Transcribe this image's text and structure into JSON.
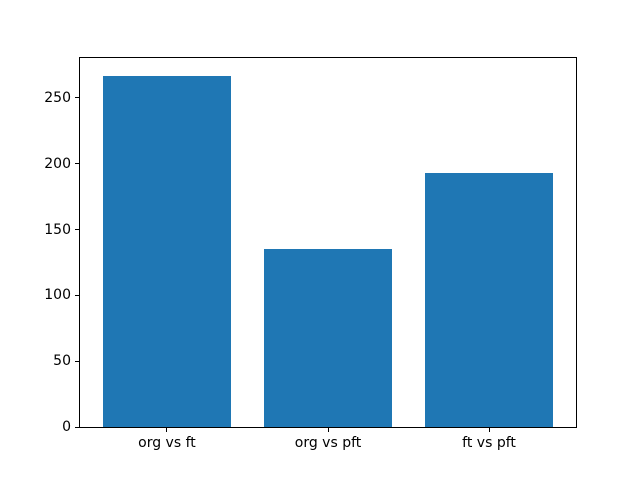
{
  "figure": {
    "background": "#ffffff"
  },
  "chart_data": {
    "type": "bar",
    "title": "",
    "xlabel": "",
    "ylabel": "",
    "categories": [
      "org vs ft",
      "org vs pft",
      "ft vs pft"
    ],
    "values": [
      267,
      135,
      193
    ],
    "yticks": [
      0,
      50,
      100,
      150,
      200,
      250
    ],
    "ylim": [
      0,
      280.35
    ],
    "xlim": [
      -0.54,
      2.54
    ],
    "bar_width": 0.8,
    "bar_color": "#1f77b4",
    "axis_color": "#000000",
    "text_color": "#000000",
    "grid": false,
    "legend_position": "none"
  }
}
